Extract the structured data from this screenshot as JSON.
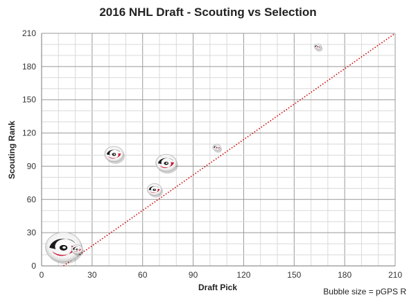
{
  "chart_data": {
    "type": "scatter",
    "title": "2016 NHL Draft - Scouting vs Selection",
    "xlabel": "Draft Pick",
    "ylabel": "Scouting Rank",
    "xlim": [
      0,
      210
    ],
    "ylim": [
      0,
      210
    ],
    "xticks": [
      0,
      30,
      60,
      90,
      120,
      150,
      180,
      210
    ],
    "yticks": [
      0,
      30,
      60,
      90,
      120,
      150,
      180,
      210
    ],
    "grid": true,
    "note": "Bubble size = pGPS R",
    "series": [
      {
        "marker": "bubble",
        "points": [
          {
            "x": 13,
            "y": 17,
            "size": 1.0
          },
          {
            "x": 21,
            "y": 15,
            "size": 0.3
          },
          {
            "x": 43,
            "y": 101,
            "size": 0.52
          },
          {
            "x": 67,
            "y": 69,
            "size": 0.4
          },
          {
            "x": 74,
            "y": 93,
            "size": 0.58
          },
          {
            "x": 104,
            "y": 107,
            "size": 0.22
          },
          {
            "x": 164,
            "y": 198,
            "size": 0.2
          }
        ]
      }
    ],
    "reference_line": {
      "from": [
        13,
        0
      ],
      "to": [
        210,
        210
      ],
      "color": "#cc0000",
      "style": "dotted"
    },
    "colors": {
      "bubble_red": "#c8102e",
      "bubble_black": "#1a1a1a",
      "grid": "#bfbfbf"
    }
  }
}
